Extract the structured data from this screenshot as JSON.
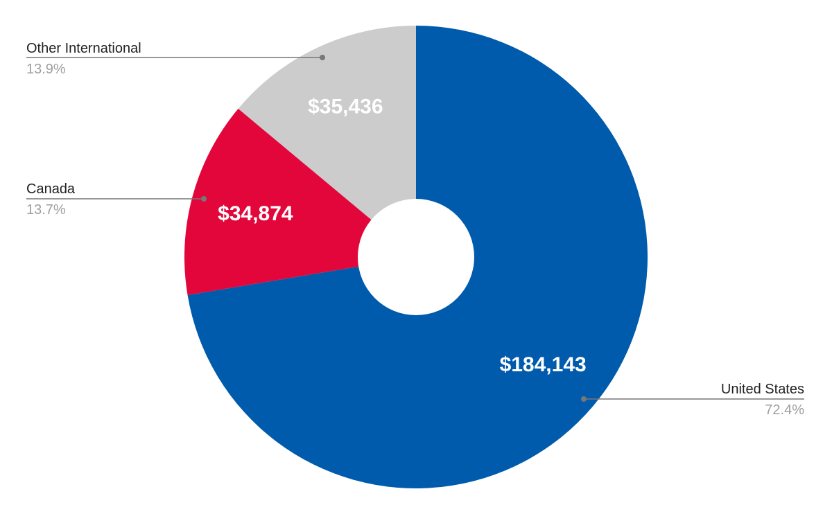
{
  "chart_data": {
    "type": "pie",
    "donut": true,
    "title": "",
    "categories": [
      "United States",
      "Canada",
      "Other International"
    ],
    "values": [
      184143,
      34874,
      35436
    ],
    "value_labels": [
      "$184,143",
      "$34,874",
      "$35,436"
    ],
    "percent_labels": [
      "72.4%",
      "13.7%",
      "13.9%"
    ],
    "colors": [
      "#005bac",
      "#e2063a",
      "#cccccc"
    ],
    "start_angle_deg": 0,
    "direction": "clockwise",
    "legend": "none"
  }
}
